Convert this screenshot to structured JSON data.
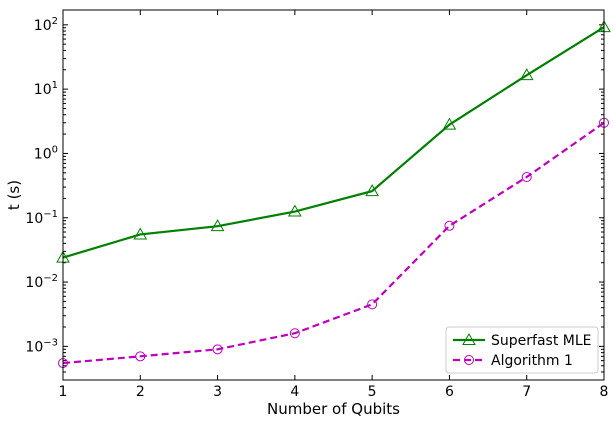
{
  "chart_data": {
    "type": "line",
    "title": "",
    "xlabel": "Number of Qubits",
    "ylabel": "t (s)",
    "x": [
      1,
      2,
      3,
      4,
      5,
      6,
      7,
      8
    ],
    "xlim": [
      1,
      8
    ],
    "yscale": "log",
    "ylim": [
      0.0003,
      170
    ],
    "x_ticks": [
      "1",
      "2",
      "3",
      "4",
      "5",
      "6",
      "7",
      "8"
    ],
    "y_ticks": [
      {
        "value": 0.001,
        "base": "10",
        "exp": "−3"
      },
      {
        "value": 0.01,
        "base": "10",
        "exp": "−2"
      },
      {
        "value": 0.1,
        "base": "10",
        "exp": "−1"
      },
      {
        "value": 1,
        "base": "10",
        "exp": "0"
      },
      {
        "value": 10,
        "base": "10",
        "exp": "1"
      },
      {
        "value": 100,
        "base": "10",
        "exp": "2"
      }
    ],
    "grid": false,
    "legend_position": "bottom-right",
    "series": [
      {
        "name": "Superfast MLE",
        "values": [
          0.024,
          0.055,
          0.074,
          0.125,
          0.26,
          2.8,
          16.5,
          92
        ],
        "color": "#008000",
        "line_style": "solid",
        "marker": "triangle"
      },
      {
        "name": "Algorithm 1",
        "values": [
          0.00055,
          0.0007,
          0.0009,
          0.0016,
          0.0045,
          0.075,
          0.43,
          3.0
        ],
        "color": "#bf00bf",
        "line_style": "dashed",
        "marker": "circle"
      }
    ]
  }
}
